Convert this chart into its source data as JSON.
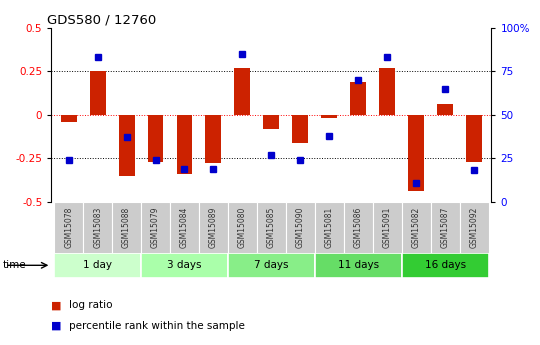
{
  "title": "GDS580 / 12760",
  "samples": [
    "GSM15078",
    "GSM15083",
    "GSM15088",
    "GSM15079",
    "GSM15084",
    "GSM15089",
    "GSM15080",
    "GSM15085",
    "GSM15090",
    "GSM15081",
    "GSM15086",
    "GSM15091",
    "GSM15082",
    "GSM15087",
    "GSM15092"
  ],
  "log_ratio": [
    -0.04,
    0.25,
    -0.35,
    -0.27,
    -0.34,
    -0.28,
    0.27,
    -0.08,
    -0.16,
    -0.02,
    0.19,
    0.27,
    -0.44,
    0.06,
    -0.27
  ],
  "percentile": [
    24,
    83,
    37,
    24,
    19,
    19,
    85,
    27,
    24,
    38,
    70,
    83,
    11,
    65,
    18
  ],
  "groups": [
    {
      "label": "1 day",
      "indices": [
        0,
        1,
        2
      ]
    },
    {
      "label": "3 days",
      "indices": [
        3,
        4,
        5
      ]
    },
    {
      "label": "7 days",
      "indices": [
        6,
        7,
        8
      ]
    },
    {
      "label": "11 days",
      "indices": [
        9,
        10,
        11
      ]
    },
    {
      "label": "16 days",
      "indices": [
        12,
        13,
        14
      ]
    }
  ],
  "group_colors": [
    "#ccffcc",
    "#aaffaa",
    "#88ee88",
    "#66dd66",
    "#33cc33"
  ],
  "ylim": [
    -0.5,
    0.5
  ],
  "bar_color": "#cc2200",
  "dot_color": "#0000cc",
  "bg_color": "#ffffff",
  "yticks": [
    -0.5,
    -0.25,
    0,
    0.25,
    0.5
  ],
  "yticklabels": [
    "-0.5",
    "-0.25",
    "0",
    "0.25",
    "0.5"
  ],
  "right_yticklabels": [
    "0",
    "25",
    "50",
    "75",
    "100%"
  ],
  "dotted_levels_black": [
    0.25,
    -0.25
  ],
  "dotted_level_red": 0.0,
  "sample_bg_color": "#cccccc",
  "sample_text_color": "#333333",
  "legend_items": [
    {
      "label": "log ratio",
      "color": "#cc2200"
    },
    {
      "label": "percentile rank within the sample",
      "color": "#0000cc"
    }
  ]
}
